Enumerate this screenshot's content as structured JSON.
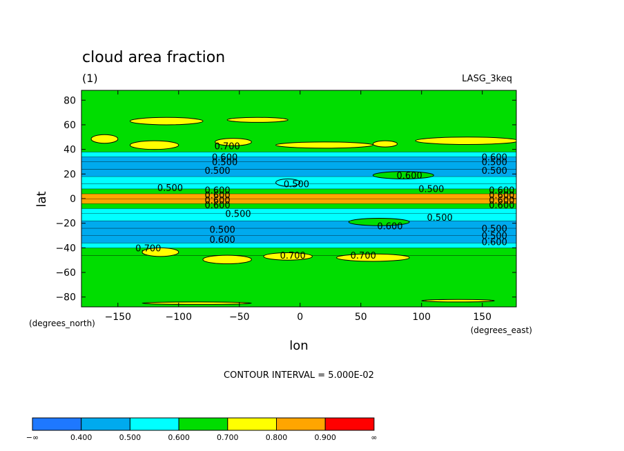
{
  "chart_data": {
    "type": "heatmap",
    "title": "cloud area fraction",
    "subtitle": "(1)",
    "source_label": "LASG_3keq",
    "xlabel": "lon",
    "ylabel": "lat",
    "x_units": "(degrees_east)",
    "y_units": "(degrees_north)",
    "xlim": [
      -180,
      178
    ],
    "ylim": [
      -88,
      88
    ],
    "x_ticks": [
      -150,
      -100,
      -50,
      0,
      50,
      100,
      150
    ],
    "y_ticks": [
      -80,
      -60,
      -40,
      -20,
      0,
      20,
      40,
      60,
      80
    ],
    "x_tick_labels": [
      "−150",
      "−100",
      "−50",
      "0",
      "50",
      "100",
      "150"
    ],
    "y_tick_labels": [
      "−80",
      "−60",
      "−40",
      "−20",
      "0",
      "20",
      "40",
      "60",
      "80"
    ],
    "contour_interval_text": "CONTOUR INTERVAL = 5.000E-02",
    "contour_interval": 0.05,
    "levels": [
      {
        "from": 0.9,
        "to": null,
        "color": "#ff0000"
      },
      {
        "from": 0.8,
        "to": 0.9,
        "color": "#ffa500"
      },
      {
        "from": 0.7,
        "to": 0.8,
        "color": "#ffff00"
      },
      {
        "from": 0.6,
        "to": 0.7,
        "color": "#00dd00"
      },
      {
        "from": 0.5,
        "to": 0.6,
        "color": "#00ffff"
      },
      {
        "from": 0.4,
        "to": 0.5,
        "color": "#00aaee"
      },
      {
        "from": null,
        "to": 0.4,
        "color": "#1e78ff"
      }
    ],
    "lat_bands": [
      {
        "lat": [
          -88,
          -46
        ],
        "value": 0.65
      },
      {
        "lat": [
          -46,
          -40
        ],
        "value": 0.62
      },
      {
        "lat": [
          -40,
          -36
        ],
        "value": 0.55
      },
      {
        "lat": [
          -36,
          -30
        ],
        "value": 0.47
      },
      {
        "lat": [
          -30,
          -24
        ],
        "value": 0.43
      },
      {
        "lat": [
          -24,
          -18
        ],
        "value": 0.46
      },
      {
        "lat": [
          -18,
          -12
        ],
        "value": 0.54
      },
      {
        "lat": [
          -12,
          -8
        ],
        "value": 0.57
      },
      {
        "lat": [
          -8,
          -4
        ],
        "value": 0.6
      },
      {
        "lat": [
          -4,
          0
        ],
        "value": 0.85
      },
      {
        "lat": [
          0,
          4
        ],
        "value": 0.85
      },
      {
        "lat": [
          4,
          8
        ],
        "value": 0.6
      },
      {
        "lat": [
          8,
          12
        ],
        "value": 0.56
      },
      {
        "lat": [
          12,
          18
        ],
        "value": 0.53
      },
      {
        "lat": [
          18,
          24
        ],
        "value": 0.46
      },
      {
        "lat": [
          24,
          30
        ],
        "value": 0.43
      },
      {
        "lat": [
          30,
          34
        ],
        "value": 0.47
      },
      {
        "lat": [
          34,
          38
        ],
        "value": 0.55
      },
      {
        "lat": [
          38,
          88
        ],
        "value": 0.65
      }
    ],
    "patches": [
      {
        "lon": [
          -172,
          -150
        ],
        "lat": [
          45,
          52
        ],
        "value": 0.75
      },
      {
        "lon": [
          -140,
          -80
        ],
        "lat": [
          60,
          66
        ],
        "value": 0.72
      },
      {
        "lon": [
          -60,
          -10
        ],
        "lat": [
          62,
          66
        ],
        "value": 0.72
      },
      {
        "lon": [
          -140,
          -100
        ],
        "lat": [
          40,
          47
        ],
        "value": 0.75
      },
      {
        "lon": [
          -70,
          -40
        ],
        "lat": [
          43,
          49
        ],
        "value": 0.75
      },
      {
        "lon": [
          -20,
          60
        ],
        "lat": [
          41,
          46
        ],
        "value": 0.74
      },
      {
        "lon": [
          95,
          180
        ],
        "lat": [
          44,
          50
        ],
        "value": 0.75
      },
      {
        "lon": [
          60,
          80
        ],
        "lat": [
          42,
          47
        ],
        "value": 0.75
      },
      {
        "lon": [
          60,
          110
        ],
        "lat": [
          16,
          22
        ],
        "value": 0.63
      },
      {
        "lon": [
          -20,
          0
        ],
        "lat": [
          10,
          16
        ],
        "value": 0.58
      },
      {
        "lon": [
          40,
          90
        ],
        "lat": [
          -22,
          -16
        ],
        "value": 0.63
      },
      {
        "lon": [
          -130,
          -100
        ],
        "lat": [
          -47,
          -40
        ],
        "value": 0.74
      },
      {
        "lon": [
          -80,
          -40
        ],
        "lat": [
          -53,
          -46
        ],
        "value": 0.74
      },
      {
        "lon": [
          -30,
          10
        ],
        "lat": [
          -50,
          -44
        ],
        "value": 0.74
      },
      {
        "lon": [
          30,
          90
        ],
        "lat": [
          -51,
          -45
        ],
        "value": 0.76
      },
      {
        "lon": [
          -130,
          -40
        ],
        "lat": [
          -86,
          -84
        ],
        "value": 0.74
      },
      {
        "lon": [
          100,
          160
        ],
        "lat": [
          -84,
          -82
        ],
        "value": 0.72
      }
    ],
    "contour_labels": [
      {
        "text": "0.700",
        "lon": -60,
        "lat": 43
      },
      {
        "text": "0.600",
        "lon": -62,
        "lat": 34
      },
      {
        "text": "0.500",
        "lon": -62,
        "lat": 30
      },
      {
        "text": "0.500",
        "lon": -68,
        "lat": 23
      },
      {
        "text": "0.600",
        "lon": 160,
        "lat": 34
      },
      {
        "text": "0.500",
        "lon": 160,
        "lat": 30
      },
      {
        "text": "0.500",
        "lon": 160,
        "lat": 23
      },
      {
        "text": "0.600",
        "lon": 90,
        "lat": 19
      },
      {
        "text": "0.500",
        "lon": -107,
        "lat": 9
      },
      {
        "text": "0.500",
        "lon": -3,
        "lat": 12
      },
      {
        "text": "0.500",
        "lon": 108,
        "lat": 8
      },
      {
        "text": "0.600",
        "lon": -68,
        "lat": 7
      },
      {
        "text": "0.600",
        "lon": -68,
        "lat": 3
      },
      {
        "text": "0.600",
        "lon": -68,
        "lat": -1
      },
      {
        "text": "0.600",
        "lon": -68,
        "lat": -5
      },
      {
        "text": "0.500",
        "lon": -51,
        "lat": -12
      },
      {
        "text": "0.600",
        "lon": 166,
        "lat": 7
      },
      {
        "text": "0.600",
        "lon": 166,
        "lat": 3
      },
      {
        "text": "0.600",
        "lon": 166,
        "lat": -1
      },
      {
        "text": "0.600",
        "lon": 166,
        "lat": -5
      },
      {
        "text": "0.500",
        "lon": 115,
        "lat": -15
      },
      {
        "text": "0.600",
        "lon": 74,
        "lat": -22
      },
      {
        "text": "0.500",
        "lon": -64,
        "lat": -25
      },
      {
        "text": "0.500",
        "lon": 160,
        "lat": -24
      },
      {
        "text": "0.600",
        "lon": -64,
        "lat": -33
      },
      {
        "text": "0.500",
        "lon": 160,
        "lat": -30
      },
      {
        "text": "0.600",
        "lon": 160,
        "lat": -35
      },
      {
        "text": "0.700",
        "lon": -125,
        "lat": -40
      },
      {
        "text": "0.700",
        "lon": -6,
        "lat": -46
      },
      {
        "text": "0.700",
        "lon": 52,
        "lat": -46
      }
    ],
    "colorbar": {
      "colors": [
        "#1e78ff",
        "#00aaee",
        "#00ffff",
        "#00dd00",
        "#ffff00",
        "#ffa500",
        "#ff0000"
      ],
      "tick_labels": [
        "−∞",
        "0.400",
        "0.500",
        "0.600",
        "0.700",
        "0.800",
        "0.900",
        "∞"
      ]
    }
  }
}
